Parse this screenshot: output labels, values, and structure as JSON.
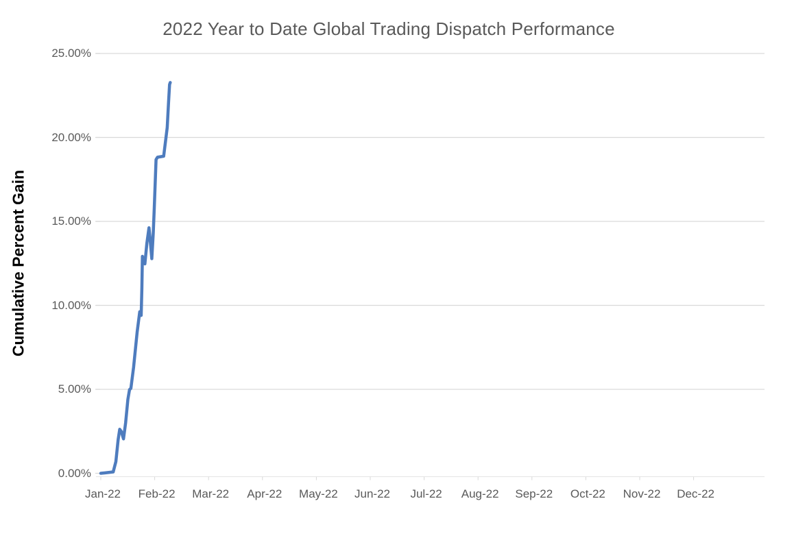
{
  "chart": {
    "title": "2022 Year to Date Global Trading Dispatch Performance",
    "colors": {
      "line": "#4E7CBE",
      "gridline": "#D9D9D9",
      "axis_line": "#E4E4E4",
      "tick_text": "#595959",
      "title_text": "#595959",
      "y_axis_title_text": "#000000",
      "background": "#FFFFFF"
    }
  },
  "chart_data": {
    "type": "line",
    "title": "2022 Year to Date Global Trading Dispatch Performance",
    "xlabel": "",
    "ylabel": "Cumulative Percent Gain",
    "x_tick_labels": [
      "Jan-22",
      "Feb-22",
      "Mar-22",
      "Apr-22",
      "May-22",
      "Jun-22",
      "Jul-22",
      "Aug-22",
      "Sep-22",
      "Oct-22",
      "Nov-22",
      "Dec-22"
    ],
    "y_tick_labels": [
      "0.00%",
      "5.00%",
      "10.00%",
      "15.00%",
      "20.00%",
      "25.00%"
    ],
    "ylim": [
      0,
      25
    ],
    "y_gridline_values": [
      5,
      10,
      15,
      20,
      25
    ],
    "x_axis_span_months": 12,
    "x_unit": "days since Jan 1, 2022",
    "y_unit": "cumulative percent gain (%)",
    "grid": "horizontal gridlines only, at 5% intervals from 5% to 25%",
    "legend": "none",
    "series": [
      {
        "name": "Cumulative Percent Gain",
        "points_day_pct": [
          [
            0,
            0.0
          ],
          [
            2,
            0.02
          ],
          [
            7,
            0.08
          ],
          [
            8.5,
            0.7
          ],
          [
            9.8,
            2.0
          ],
          [
            10.7,
            2.62
          ],
          [
            11.6,
            2.48
          ],
          [
            12.8,
            2.05
          ],
          [
            14,
            3.0
          ],
          [
            15.3,
            4.4
          ],
          [
            16.2,
            4.98
          ],
          [
            17,
            5.06
          ],
          [
            18.5,
            6.3
          ],
          [
            20.5,
            8.4
          ],
          [
            22,
            9.62
          ],
          [
            22.8,
            9.4
          ],
          [
            23.2,
            11.0
          ],
          [
            23.5,
            12.92
          ],
          [
            24.1,
            12.65
          ],
          [
            24.9,
            12.47
          ],
          [
            26,
            13.7
          ],
          [
            27.2,
            14.62
          ],
          [
            27.8,
            14.0
          ],
          [
            28.8,
            12.78
          ],
          [
            29.6,
            14.3
          ],
          [
            30.2,
            15.8
          ],
          [
            31.2,
            18.68
          ],
          [
            32,
            18.82
          ],
          [
            35.5,
            18.88
          ],
          [
            36.8,
            20.0
          ],
          [
            37.5,
            20.6
          ],
          [
            38.2,
            22.0
          ],
          [
            38.8,
            23.15
          ],
          [
            39.2,
            23.27
          ]
        ]
      }
    ],
    "final_value_pct": 23.27,
    "data_range_note": "series runs from early Jan-22 to early Feb-22 only; rest of year axis is empty"
  }
}
